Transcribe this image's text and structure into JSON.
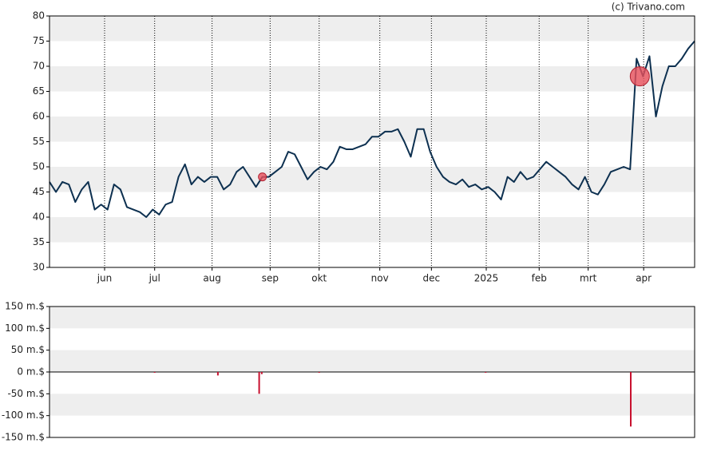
{
  "credit": "(c) Trivano.com",
  "chart_data": [
    {
      "type": "line",
      "x": [
        0,
        1,
        2,
        3,
        4,
        5,
        6,
        7,
        8,
        9,
        10,
        11,
        12,
        13,
        14,
        15,
        16,
        17,
        18,
        19,
        20,
        21,
        22,
        23,
        24,
        25,
        26,
        27,
        28,
        29,
        30,
        31,
        32,
        33,
        34,
        35,
        36,
        37,
        38,
        39,
        40,
        41,
        42,
        43,
        44,
        45,
        46,
        47,
        48,
        49,
        50,
        51,
        52,
        53,
        54,
        55,
        56,
        57,
        58,
        59,
        60,
        61,
        62,
        63,
        64,
        65,
        66,
        67,
        68,
        69,
        70,
        71,
        72,
        73,
        74,
        75,
        76,
        77,
        78,
        79,
        80,
        81,
        82,
        83,
        84,
        85,
        86,
        87,
        88,
        89,
        90,
        91,
        92,
        93,
        94,
        95,
        96,
        97,
        98,
        99,
        100
      ],
      "series": [
        {
          "color": "#0d3050",
          "values": [
            47,
            45,
            47,
            46.5,
            43,
            45.5,
            47,
            41.5,
            42.5,
            41.5,
            46.5,
            45.5,
            42,
            41.5,
            41,
            40,
            41.5,
            40.5,
            42.5,
            43,
            48,
            50.5,
            46.5,
            48,
            47,
            48,
            48,
            45.5,
            46.5,
            49,
            50,
            48,
            46,
            48,
            48,
            49,
            50,
            53,
            52.5,
            50,
            47.5,
            49,
            50,
            49.5,
            51,
            54,
            53.5,
            53.5,
            54,
            54.5,
            56,
            56,
            57,
            57,
            57.5,
            55,
            52,
            57.5,
            57.5,
            53,
            50,
            48,
            47,
            46.5,
            47.5,
            46,
            46.5,
            45.5,
            46,
            45,
            43.5,
            48,
            47,
            49,
            47.5,
            48,
            49.5,
            51,
            50,
            49,
            48,
            46.5,
            45.5,
            48,
            45,
            44.5,
            46.5,
            49,
            49.5,
            50,
            49.5,
            71.5,
            68,
            72,
            60,
            66,
            70,
            70,
            71.5,
            73.5,
            75
          ]
        }
      ],
      "markers": [
        {
          "x": 33,
          "value": 48,
          "size": 5
        },
        {
          "x": 91.5,
          "value": 68,
          "size": 12
        }
      ],
      "xlim": [
        0,
        100
      ],
      "xticks": [
        {
          "value": 8.54,
          "label": "jun"
        },
        {
          "value": 16.3,
          "label": "jul"
        },
        {
          "value": 25.2,
          "label": "aug"
        },
        {
          "value": 34.2,
          "label": "sep"
        },
        {
          "value": 41.8,
          "label": "okt"
        },
        {
          "value": 51.2,
          "label": "nov"
        },
        {
          "value": 59.2,
          "label": "dec"
        },
        {
          "value": 67.7,
          "label": "2025"
        },
        {
          "value": 75.9,
          "label": "feb"
        },
        {
          "value": 83.5,
          "label": "mrt"
        },
        {
          "value": 92.1,
          "label": "apr"
        }
      ],
      "ylim": [
        30,
        80
      ],
      "yticks": [
        80,
        75,
        70,
        65,
        60,
        55,
        50,
        45,
        40,
        35,
        30
      ]
    },
    {
      "type": "bar",
      "x": [
        16.3,
        26.1,
        32.5,
        32.9,
        41.8,
        67.6,
        90.1
      ],
      "values": [
        -1,
        -8,
        -50,
        -5,
        -1,
        -1,
        -125
      ],
      "color": "#c8102e",
      "xlim": [
        0,
        100
      ],
      "ylim": [
        -150,
        150
      ],
      "yticks": [
        {
          "value": 150,
          "label": "150 m.$"
        },
        {
          "value": 100,
          "label": "100 m.$"
        },
        {
          "value": 50,
          "label": "50 m.$"
        },
        {
          "value": 0,
          "label": "0 m.$"
        },
        {
          "value": -50,
          "label": "-50 m.$"
        },
        {
          "value": -100,
          "label": "-100 m.$"
        },
        {
          "value": -150,
          "label": "-150 m.$"
        }
      ]
    }
  ]
}
